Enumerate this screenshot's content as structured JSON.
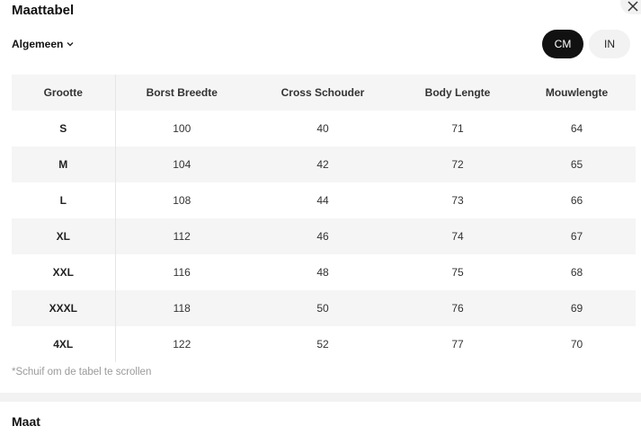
{
  "dialog": {
    "title": "Maattabel",
    "close_icon": "close-icon"
  },
  "category": {
    "selected": "Algemeen",
    "icon": "chevron-down-icon"
  },
  "units": {
    "cm": "CM",
    "in": "IN",
    "selected": "CM"
  },
  "table": {
    "headers": [
      "Grootte",
      "Borst Breedte",
      "Cross Schouder",
      "Body Lengte",
      "Mouwlengte"
    ],
    "rows": [
      [
        "S",
        "100",
        "40",
        "71",
        "64"
      ],
      [
        "M",
        "104",
        "42",
        "72",
        "65"
      ],
      [
        "L",
        "108",
        "44",
        "73",
        "66"
      ],
      [
        "XL",
        "112",
        "46",
        "74",
        "67"
      ],
      [
        "XXL",
        "116",
        "48",
        "75",
        "68"
      ],
      [
        "XXXL",
        "118",
        "50",
        "76",
        "69"
      ],
      [
        "4XL",
        "122",
        "52",
        "77",
        "70"
      ]
    ]
  },
  "hint": "*Schuif om de tabel te scrollen",
  "next_section": {
    "title": "Maat"
  }
}
